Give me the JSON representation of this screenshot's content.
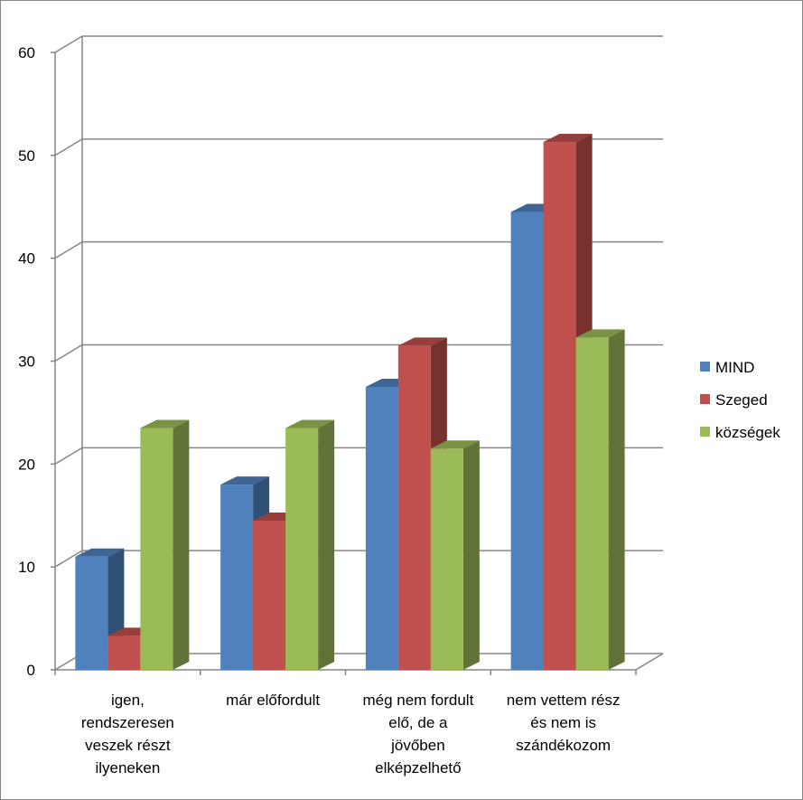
{
  "chart_data": {
    "type": "bar",
    "title": "",
    "xlabel": "",
    "ylabel": "",
    "ylim": [
      0,
      60
    ],
    "yticks": [
      0,
      10,
      20,
      30,
      40,
      50,
      60
    ],
    "grid": true,
    "legend_position": "right",
    "categories": [
      "igen, rendszeresen veszek részt ilyeneken",
      "már előfordult",
      "még nem fordult elő, de a jövőben elképzelhető",
      "nem vettem rész és nem is szándékozom"
    ],
    "category_lines": [
      [
        "igen,",
        "rendszeresen",
        "veszek részt",
        "ilyeneken"
      ],
      [
        "már előfordult"
      ],
      [
        "még nem fordult",
        "elő, de a",
        "jövőben",
        "elképzelhető"
      ],
      [
        "nem vettem rész",
        "és nem is",
        "szándékozom"
      ]
    ],
    "series": [
      {
        "name": "MIND",
        "color": "#4F81BD",
        "values": [
          11,
          18,
          27.5,
          44.5
        ]
      },
      {
        "name": "Szeged",
        "color": "#C0504D",
        "values": [
          3.3,
          14.5,
          31.5,
          51.3
        ]
      },
      {
        "name": "községek",
        "color": "#9BBB59",
        "values": [
          23.5,
          23.5,
          21.5,
          32.3
        ]
      }
    ]
  }
}
